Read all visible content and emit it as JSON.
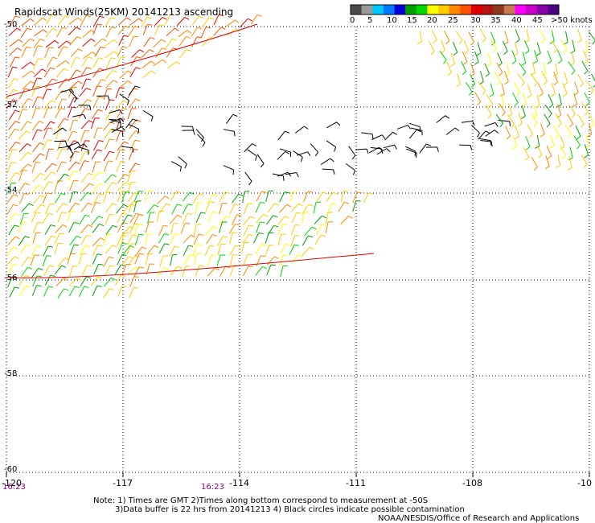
{
  "title": "Rapidscat Winds(25KM) 20141213 ascending",
  "legend": {
    "colors": [
      "#4a4a4a",
      "#9a9a9a",
      "#00c8ff",
      "#0078ff",
      "#0000d8",
      "#00a000",
      "#00d800",
      "#ffff00",
      "#ffcc00",
      "#ff8800",
      "#ff5000",
      "#e00000",
      "#b41414",
      "#8b3a1e",
      "#c87850",
      "#ff00ff",
      "#cc00cc",
      "#8800aa",
      "#4b0082"
    ],
    "labels": [
      "0",
      "5",
      "10",
      "15",
      "20",
      "25",
      "30",
      "35",
      "40",
      "45",
      ">50 knots"
    ]
  },
  "lat_labels": [
    "-50",
    "-52",
    "-54",
    "-56",
    "-58",
    "-60"
  ],
  "lon_labels": [
    "-120",
    "-117",
    "-114",
    "-111",
    "-108",
    "-10"
  ],
  "time_labels": [
    "16:23",
    "16:23"
  ],
  "notes": {
    "line1": "Note: 1) Times are GMT 2)Times along bottom correspond to measurement at -50S",
    "line2": "3)Data buffer is 22 hrs from 20141213 4) Black circles indicate possible contamination",
    "line3": "NOAA/NESDIS/Office of Research and Applications"
  }
}
